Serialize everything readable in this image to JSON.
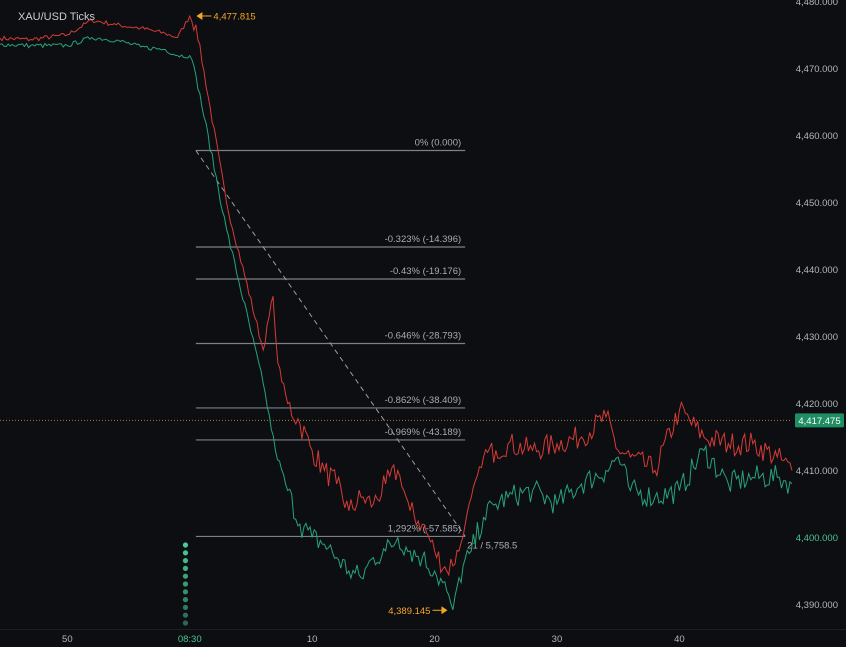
{
  "chart_data": {
    "type": "line",
    "title": "XAU/USD Ticks",
    "xlabel": "",
    "ylabel": "",
    "ylim": [
      4386.5,
      4480.2
    ],
    "y_ticks": [
      {
        "value": 4480,
        "label": "4,480.000"
      },
      {
        "value": 4470,
        "label": "4,470.000"
      },
      {
        "value": 4460,
        "label": "4,460.000"
      },
      {
        "value": 4450,
        "label": "4,450.000"
      },
      {
        "value": 4440,
        "label": "4,440.000"
      },
      {
        "value": 4430,
        "label": "4,430.000"
      },
      {
        "value": 4420,
        "label": "4,420.000"
      },
      {
        "value": 4410,
        "label": "4,410.000"
      },
      {
        "value": 4400,
        "label": "4,400.000"
      },
      {
        "value": 4390,
        "label": "4,390.000"
      }
    ],
    "x_range_minutes": [
      -15.5,
      49.2
    ],
    "x_ticks": [
      {
        "minute": -10,
        "label": "50"
      },
      {
        "minute": 0,
        "label": "08:30"
      },
      {
        "minute": 10,
        "label": "10"
      },
      {
        "minute": 20,
        "label": "20"
      },
      {
        "minute": 30,
        "label": "30"
      },
      {
        "minute": 40,
        "label": "40"
      }
    ],
    "series": [
      {
        "role": "ask",
        "color": "#d63b36",
        "x": [
          -15.5,
          -13,
          -10,
          -8,
          -6,
          -4,
          -2,
          -1,
          0,
          0.5,
          3,
          6,
          6.8,
          7.2,
          8,
          9,
          10,
          11,
          12,
          13,
          14,
          15,
          16,
          17,
          18,
          19,
          20,
          21,
          22,
          22.5,
          23,
          24,
          25,
          26,
          28,
          30,
          32,
          34,
          35,
          36,
          38,
          40,
          42,
          44,
          46,
          48,
          49.2
        ],
        "y": [
          4474.5,
          4474.3,
          4475,
          4477.2,
          4476.5,
          4476,
          4475.2,
          4474.6,
          4477.8,
          4476.5,
          4450,
          4428,
          4436,
          4426,
          4420,
          4417,
          4413,
          4410,
          4408,
          4404,
          4406,
          4405,
          4408,
          4410,
          4404,
          4402,
          4398,
          4395,
          4398,
          4402,
          4406,
          4412,
          4413,
          4414,
          4413,
          4414,
          4415,
          4418,
          4413,
          4412,
          4410,
          4419,
          4415,
          4414,
          4414,
          4412,
          4410
        ]
      },
      {
        "role": "bid",
        "color": "#27a37a",
        "x": [
          -15.5,
          -13,
          -10,
          -8,
          -6,
          -4,
          -2,
          -1,
          0,
          0.5,
          3,
          6,
          7,
          8,
          9,
          10,
          11,
          12,
          13,
          14,
          15,
          16,
          17,
          18,
          19,
          20,
          21,
          21.5,
          22,
          23,
          24,
          25,
          26,
          28,
          30,
          32,
          34,
          35,
          36,
          38,
          40,
          42,
          44,
          46,
          48,
          49.2
        ],
        "y": [
          4473.6,
          4473.4,
          4473.4,
          4474.6,
          4474.2,
          4473.2,
          4472.8,
          4471.9,
          4471.9,
          4469,
          4446,
          4423,
          4413,
          4407,
          4402,
          4400,
          4399,
          4397,
          4395,
          4394,
          4397,
          4398,
          4400,
          4398,
          4397,
          4395,
          4392,
          4389.2,
          4394,
          4398,
          4403,
          4405,
          4406,
          4407,
          4405,
          4408,
          4410,
          4412,
          4407,
          4406,
          4407,
          4413,
          4408,
          4409,
          4409,
          4408
        ]
      }
    ],
    "fib_levels": [
      {
        "value": 4457.745,
        "label": "0% (0.000)"
      },
      {
        "value": 4443.349,
        "label": "-0.323% (-14.396)"
      },
      {
        "value": 4438.569,
        "label": "-0.43% (-19.176)"
      },
      {
        "value": 4428.952,
        "label": "-0.646% (-28.793)"
      },
      {
        "value": 4419.336,
        "label": "-0.862% (-38.409)"
      },
      {
        "value": 4414.556,
        "label": "-0.969% (-43.189)"
      },
      {
        "value": 4400.16,
        "label": "1,292% (-57.585)"
      }
    ],
    "fib_x_range_minutes": [
      0.5,
      22.5
    ],
    "fib_diagonal": {
      "from_minute": 0.5,
      "to_minute": 22.5,
      "from_value": 4457.745,
      "to_value": 4400.16
    },
    "measure_label": "21 / 5,758.5",
    "current_price": {
      "value": 4417.475,
      "label": "4,417.475",
      "badge_color": "#1f8f63"
    },
    "annotations": [
      {
        "minute": 0.3,
        "value": 4477.815,
        "label": "4,477.815"
      },
      {
        "minute": 21.3,
        "value": 4389.145,
        "label": "4,389.145"
      }
    ],
    "annotation_color": "#f5a623",
    "grid": false,
    "legend": "none"
  }
}
